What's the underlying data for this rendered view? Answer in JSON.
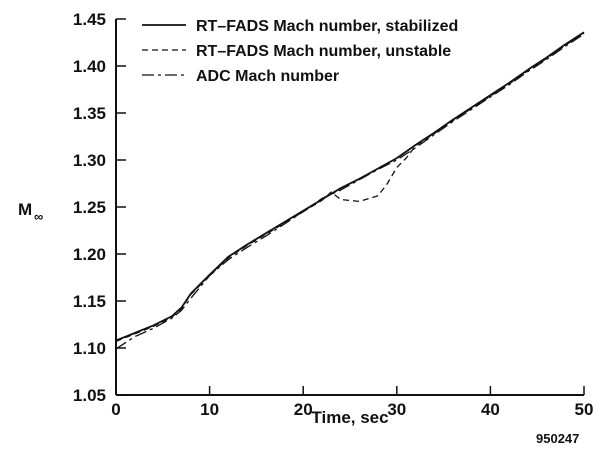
{
  "chart_data": {
    "type": "line",
    "xlabel": "Time, sec",
    "ylabel": "M",
    "ylabel_subscript": "∞",
    "xlim": [
      0,
      50
    ],
    "ylim": [
      1.05,
      1.45
    ],
    "x_ticks": [
      0,
      10,
      20,
      30,
      40,
      50
    ],
    "y_ticks": [
      "1.05",
      "1.10",
      "1.15",
      "1.20",
      "1.25",
      "1.30",
      "1.35",
      "1.40",
      "1.45"
    ],
    "grid": false,
    "legend_position": "top-left",
    "figure_id": "950247",
    "series": [
      {
        "name": "RT–FADS Mach number, stabilized",
        "style": "solid",
        "x": [
          0,
          2,
          4,
          6,
          7,
          8,
          9,
          10,
          12,
          14,
          16,
          18,
          20,
          22,
          24,
          26,
          28,
          30,
          32,
          34,
          36,
          38,
          40,
          42,
          44,
          46,
          48,
          50
        ],
        "y": [
          1.108,
          1.116,
          1.124,
          1.134,
          1.143,
          1.158,
          1.168,
          1.178,
          1.197,
          1.21,
          1.222,
          1.234,
          1.246,
          1.258,
          1.27,
          1.28,
          1.291,
          1.302,
          1.316,
          1.329,
          1.343,
          1.356,
          1.369,
          1.382,
          1.396,
          1.409,
          1.423,
          1.436
        ]
      },
      {
        "name": "RT–FADS Mach number, unstable",
        "style": "dashed",
        "x": [
          0,
          2,
          4,
          6,
          7,
          8,
          9,
          10,
          12,
          14,
          16,
          18,
          20,
          22,
          23,
          24,
          26,
          28,
          29,
          30,
          31,
          32,
          34,
          36,
          38,
          40,
          42,
          44,
          46,
          48,
          50
        ],
        "y": [
          1.107,
          1.115,
          1.123,
          1.133,
          1.142,
          1.157,
          1.167,
          1.177,
          1.196,
          1.209,
          1.221,
          1.233,
          1.245,
          1.257,
          1.266,
          1.258,
          1.256,
          1.262,
          1.275,
          1.292,
          1.302,
          1.315,
          1.328,
          1.342,
          1.355,
          1.368,
          1.381,
          1.395,
          1.408,
          1.422,
          1.435
        ]
      },
      {
        "name": "ADC Mach number",
        "style": "dashdot",
        "x": [
          0,
          2,
          4,
          6,
          7,
          8,
          9,
          10,
          12,
          14,
          16,
          18,
          20,
          22,
          24,
          26,
          28,
          30,
          32,
          34,
          36,
          38,
          40,
          42,
          44,
          46,
          48,
          50
        ],
        "y": [
          1.099,
          1.112,
          1.121,
          1.132,
          1.14,
          1.153,
          1.165,
          1.177,
          1.194,
          1.207,
          1.219,
          1.232,
          1.245,
          1.259,
          1.268,
          1.279,
          1.29,
          1.3,
          1.313,
          1.327,
          1.341,
          1.354,
          1.367,
          1.38,
          1.394,
          1.407,
          1.421,
          1.434
        ]
      }
    ]
  }
}
